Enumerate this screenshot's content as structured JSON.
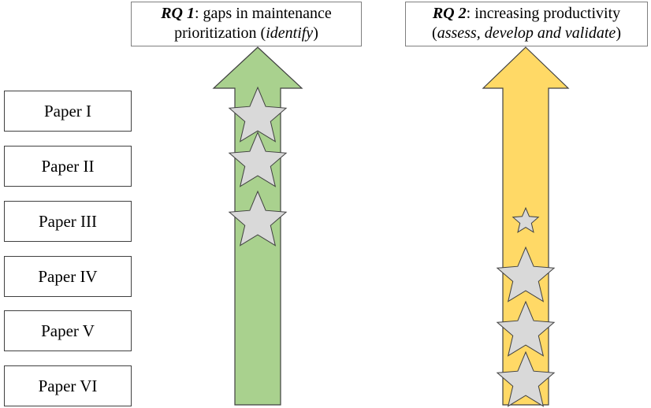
{
  "research_questions": [
    {
      "id": "rq1",
      "label": "RQ 1",
      "text": ": gaps in maintenance",
      "line2_pre": "prioritization (",
      "line2_em": "identify",
      "line2_post": ")",
      "arrow_color": "#a9d18e"
    },
    {
      "id": "rq2",
      "label": "RQ 2",
      "text": ": increasing productivity",
      "line2_pre": "(",
      "line2_em": "assess, develop and validate",
      "line2_post": ")",
      "arrow_color": "#ffd966"
    }
  ],
  "papers": [
    "Paper I",
    "Paper II",
    "Paper III",
    "Paper IV",
    "Paper V",
    "Paper VI"
  ],
  "contributions": [
    {
      "rq": "rq1",
      "paper": "Paper I",
      "strength": "large"
    },
    {
      "rq": "rq1",
      "paper": "Paper II",
      "strength": "large"
    },
    {
      "rq": "rq1",
      "paper": "Paper III",
      "strength": "large"
    },
    {
      "rq": "rq2",
      "paper": "Paper III",
      "strength": "small"
    },
    {
      "rq": "rq2",
      "paper": "Paper IV",
      "strength": "large"
    },
    {
      "rq": "rq2",
      "paper": "Paper V",
      "strength": "large"
    },
    {
      "rq": "rq2",
      "paper": "Paper VI",
      "strength": "large"
    }
  ],
  "star_color": "#d9d9d9"
}
